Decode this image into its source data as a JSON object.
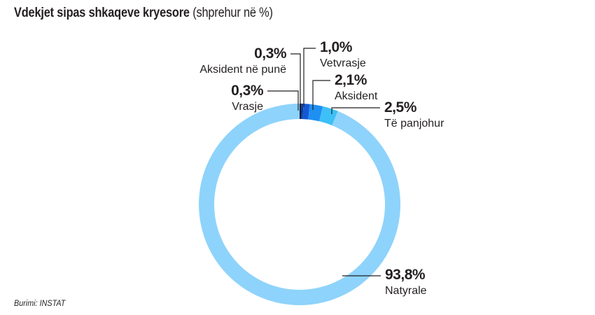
{
  "header": {
    "title": "Vdekjet sipas shkaqeve kryesore",
    "subtitle": "(shprehur në %)"
  },
  "footer": {
    "source": "Burimi: INSTAT"
  },
  "chart_data": {
    "type": "pie",
    "style": "donut",
    "title": "Vdekjet sipas shkaqeve kryesore",
    "subtitle": "(shprehur në %)",
    "unit": "%",
    "slices": [
      {
        "label": "Vrasje",
        "value": 0.3,
        "value_label": "0,3%",
        "color": "#0b1f4d"
      },
      {
        "label": "Aksident në punë",
        "value": 0.3,
        "value_label": "0,3%",
        "color": "#0a3f9e"
      },
      {
        "label": "Vetvrasje",
        "value": 1.0,
        "value_label": "1,0%",
        "color": "#1558d6"
      },
      {
        "label": "Aksident",
        "value": 2.1,
        "value_label": "2,1%",
        "color": "#1f8ff2"
      },
      {
        "label": "Të panjohur",
        "value": 2.5,
        "value_label": "2,5%",
        "color": "#3cc0f7"
      },
      {
        "label": "Natyrale",
        "value": 93.8,
        "value_label": "93,8%",
        "color": "#8ed3fb"
      }
    ],
    "source": "Burimi: INSTAT"
  }
}
